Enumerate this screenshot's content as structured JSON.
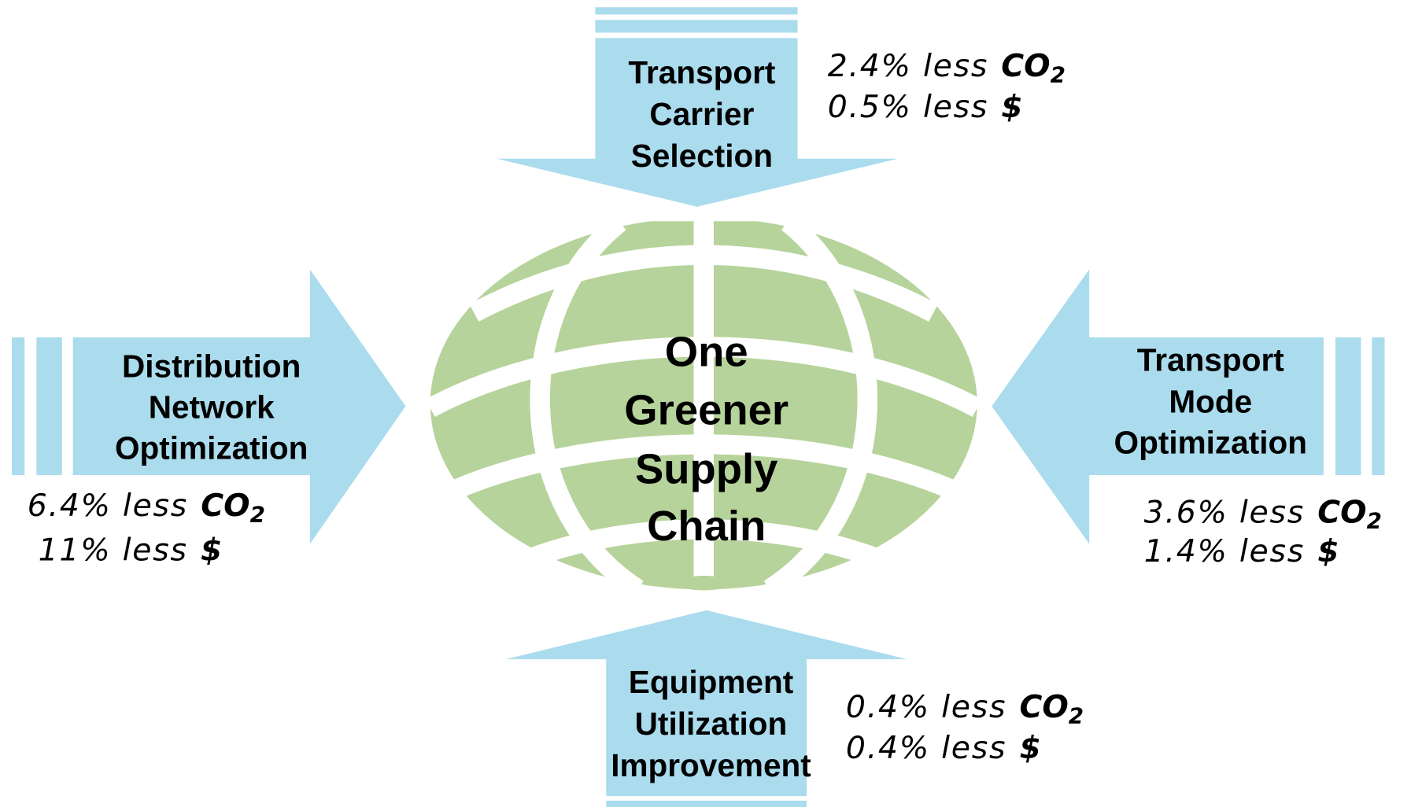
{
  "center": {
    "lines": [
      "One",
      "Greener",
      "Supply",
      "Chain"
    ]
  },
  "arrows": [
    {
      "label": [
        "Transport",
        "Carrier",
        "Selection"
      ],
      "stats": [
        {
          "text": "2.4% less",
          "unit": "CO",
          "sub": "2"
        },
        {
          "text": "0.5% less",
          "unit": "$"
        }
      ]
    },
    {
      "label": [
        "Distribution",
        "Network",
        "Optimization"
      ],
      "stats": [
        {
          "text": "6.4% less",
          "unit": "CO",
          "sub": "2"
        },
        {
          "text": "11% less",
          "unit": "$"
        }
      ]
    },
    {
      "label": [
        "Transport",
        "Mode",
        "Optimization"
      ],
      "stats": [
        {
          "text": "3.6% less",
          "unit": "CO",
          "sub": "2"
        },
        {
          "text": "1.4% less",
          "unit": "$"
        }
      ]
    },
    {
      "label": [
        "Equipment",
        "Utilization",
        "Improvement"
      ],
      "stats": [
        {
          "text": "0.4% less",
          "unit": "CO",
          "sub": "2"
        },
        {
          "text": "0.4% less",
          "unit": "$"
        }
      ]
    }
  ]
}
